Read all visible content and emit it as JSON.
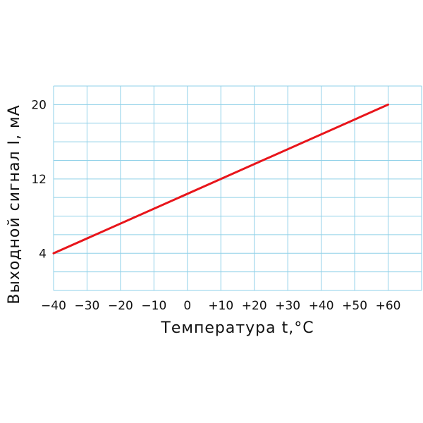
{
  "chart_data": {
    "type": "line",
    "xlabel": "Температура t,°C",
    "ylabel": "Выходной сигнал I, мА",
    "x_ticks": [
      "−40",
      "−30",
      "−20",
      "−10",
      "0",
      "+10",
      "+20",
      "+30",
      "+40",
      "+50",
      "+60"
    ],
    "y_ticks": [
      "4",
      "12",
      "20"
    ],
    "xlim": [
      -40,
      70
    ],
    "ylim": [
      0,
      22
    ],
    "grid": true,
    "series": [
      {
        "x": [
          -40,
          60
        ],
        "y": [
          4,
          20
        ]
      }
    ],
    "colors": {
      "line": "#e8151b",
      "grid": "#8fd0e8"
    }
  }
}
